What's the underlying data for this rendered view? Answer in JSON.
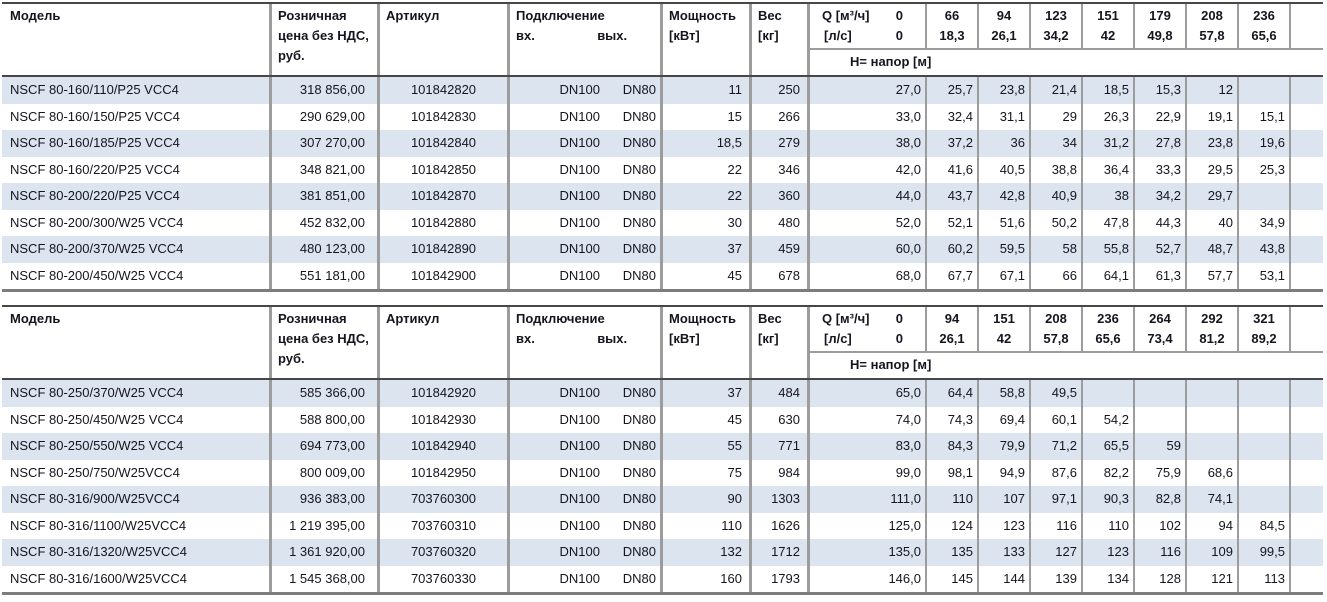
{
  "columns": {
    "model": "Модель",
    "price": "Розничная цена без НДС, руб.",
    "article": "Артикул",
    "connection": "Подключение",
    "conn_in": "вх.",
    "conn_out": "вых.",
    "power_label": "Мощность",
    "power_unit": "[кВт]",
    "weight_label": "Вес",
    "weight_unit": "[кг]",
    "q_flow_label": "Q [м³/ч]",
    "q_ls_label": "[л/с]",
    "h_label": "H= напор [м]"
  },
  "colors": {
    "row_stripe": "#dbe4ef",
    "grid_border": "#9c9c9c",
    "dark_border": "#474747",
    "bottom_border": "#7d7d7d",
    "text": "#15151f"
  },
  "tables": [
    {
      "q_zero_m3h": "0",
      "q_zero_ls": "0",
      "q_cols": [
        {
          "m3h": "66",
          "ls": "18,3"
        },
        {
          "m3h": "94",
          "ls": "26,1"
        },
        {
          "m3h": "123",
          "ls": "34,2"
        },
        {
          "m3h": "151",
          "ls": "42"
        },
        {
          "m3h": "179",
          "ls": "49,8"
        },
        {
          "m3h": "208",
          "ls": "57,8"
        },
        {
          "m3h": "236",
          "ls": "65,6"
        }
      ],
      "rows": [
        {
          "model": "NSCF 80-160/110/P25 VCC4",
          "price": "318 856,00",
          "article": "101842820",
          "dn_in": "DN100",
          "dn_out": "DN80",
          "power": "11",
          "weight": "250",
          "h": [
            "27,0",
            "25,7",
            "23,8",
            "21,4",
            "18,5",
            "15,3",
            "12",
            ""
          ]
        },
        {
          "model": "NSCF 80-160/150/P25 VCC4",
          "price": "290 629,00",
          "article": "101842830",
          "dn_in": "DN100",
          "dn_out": "DN80",
          "power": "15",
          "weight": "266",
          "h": [
            "33,0",
            "32,4",
            "31,1",
            "29",
            "26,3",
            "22,9",
            "19,1",
            "15,1"
          ]
        },
        {
          "model": "NSCF 80-160/185/P25 VCC4",
          "price": "307 270,00",
          "article": "101842840",
          "dn_in": "DN100",
          "dn_out": "DN80",
          "power": "18,5",
          "weight": "279",
          "h": [
            "38,0",
            "37,2",
            "36",
            "34",
            "31,2",
            "27,8",
            "23,8",
            "19,6"
          ]
        },
        {
          "model": "NSCF 80-160/220/P25 VCC4",
          "price": "348 821,00",
          "article": "101842850",
          "dn_in": "DN100",
          "dn_out": "DN80",
          "power": "22",
          "weight": "346",
          "h": [
            "42,0",
            "41,6",
            "40,5",
            "38,8",
            "36,4",
            "33,3",
            "29,5",
            "25,3"
          ]
        },
        {
          "model": "NSCF 80-200/220/P25 VCC4",
          "price": "381 851,00",
          "article": "101842870",
          "dn_in": "DN100",
          "dn_out": "DN80",
          "power": "22",
          "weight": "360",
          "h": [
            "44,0",
            "43,7",
            "42,8",
            "40,9",
            "38",
            "34,2",
            "29,7",
            ""
          ]
        },
        {
          "model": "NSCF 80-200/300/W25 VCC4",
          "price": "452 832,00",
          "article": "101842880",
          "dn_in": "DN100",
          "dn_out": "DN80",
          "power": "30",
          "weight": "480",
          "h": [
            "52,0",
            "52,1",
            "51,6",
            "50,2",
            "47,8",
            "44,3",
            "40",
            "34,9"
          ]
        },
        {
          "model": "NSCF 80-200/370/W25 VCC4",
          "price": "480 123,00",
          "article": "101842890",
          "dn_in": "DN100",
          "dn_out": "DN80",
          "power": "37",
          "weight": "459",
          "h": [
            "60,0",
            "60,2",
            "59,5",
            "58",
            "55,8",
            "52,7",
            "48,7",
            "43,8"
          ]
        },
        {
          "model": "NSCF 80-200/450/W25 VCC4",
          "price": "551 181,00",
          "article": "101842900",
          "dn_in": "DN100",
          "dn_out": "DN80",
          "power": "45",
          "weight": "678",
          "h": [
            "68,0",
            "67,7",
            "67,1",
            "66",
            "64,1",
            "61,3",
            "57,7",
            "53,1"
          ]
        }
      ]
    },
    {
      "q_zero_m3h": "0",
      "q_zero_ls": "0",
      "q_cols": [
        {
          "m3h": "94",
          "ls": "26,1"
        },
        {
          "m3h": "151",
          "ls": "42"
        },
        {
          "m3h": "208",
          "ls": "57,8"
        },
        {
          "m3h": "236",
          "ls": "65,6"
        },
        {
          "m3h": "264",
          "ls": "73,4"
        },
        {
          "m3h": "292",
          "ls": "81,2"
        },
        {
          "m3h": "321",
          "ls": "89,2"
        }
      ],
      "rows": [
        {
          "model": "NSCF 80-250/370/W25 VCC4",
          "price": "585 366,00",
          "article": "101842920",
          "dn_in": "DN100",
          "dn_out": "DN80",
          "power": "37",
          "weight": "484",
          "h": [
            "65,0",
            "64,4",
            "58,8",
            "49,5",
            "",
            "",
            "",
            ""
          ]
        },
        {
          "model": "NSCF 80-250/450/W25 VCC4",
          "price": "588 800,00",
          "article": "101842930",
          "dn_in": "DN100",
          "dn_out": "DN80",
          "power": "45",
          "weight": "630",
          "h": [
            "74,0",
            "74,3",
            "69,4",
            "60,1",
            "54,2",
            "",
            "",
            ""
          ]
        },
        {
          "model": "NSCF 80-250/550/W25 VCC4",
          "price": "694 773,00",
          "article": "101842940",
          "dn_in": "DN100",
          "dn_out": "DN80",
          "power": "55",
          "weight": "771",
          "h": [
            "83,0",
            "84,3",
            "79,9",
            "71,2",
            "65,5",
            "59",
            "",
            ""
          ]
        },
        {
          "model": "NSCF 80-250/750/W25VCC4",
          "price": "800 009,00",
          "article": "101842950",
          "dn_in": "DN100",
          "dn_out": "DN80",
          "power": "75",
          "weight": "984",
          "h": [
            "99,0",
            "98,1",
            "94,9",
            "87,6",
            "82,2",
            "75,9",
            "68,6",
            ""
          ]
        },
        {
          "model": "NSCF 80-316/900/W25VCC4",
          "price": "936 383,00",
          "article": "703760300",
          "dn_in": "DN100",
          "dn_out": "DN80",
          "power": "90",
          "weight": "1303",
          "h": [
            "111,0",
            "110",
            "107",
            "97,1",
            "90,3",
            "82,8",
            "74,1",
            ""
          ]
        },
        {
          "model": "NSCF 80-316/1100/W25VCC4",
          "price": "1 219 395,00",
          "article": "703760310",
          "dn_in": "DN100",
          "dn_out": "DN80",
          "power": "110",
          "weight": "1626",
          "h": [
            "125,0",
            "124",
            "123",
            "116",
            "110",
            "102",
            "94",
            "84,5"
          ]
        },
        {
          "model": "NSCF 80-316/1320/W25VCC4",
          "price": "1 361 920,00",
          "article": "703760320",
          "dn_in": "DN100",
          "dn_out": "DN80",
          "power": "132",
          "weight": "1712",
          "h": [
            "135,0",
            "135",
            "133",
            "127",
            "123",
            "116",
            "109",
            "99,5"
          ]
        },
        {
          "model": "NSCF 80-316/1600/W25VCC4",
          "price": "1 545 368,00",
          "article": "703760330",
          "dn_in": "DN100",
          "dn_out": "DN80",
          "power": "160",
          "weight": "1793",
          "h": [
            "146,0",
            "145",
            "144",
            "139",
            "134",
            "128",
            "121",
            "113"
          ]
        }
      ]
    }
  ]
}
